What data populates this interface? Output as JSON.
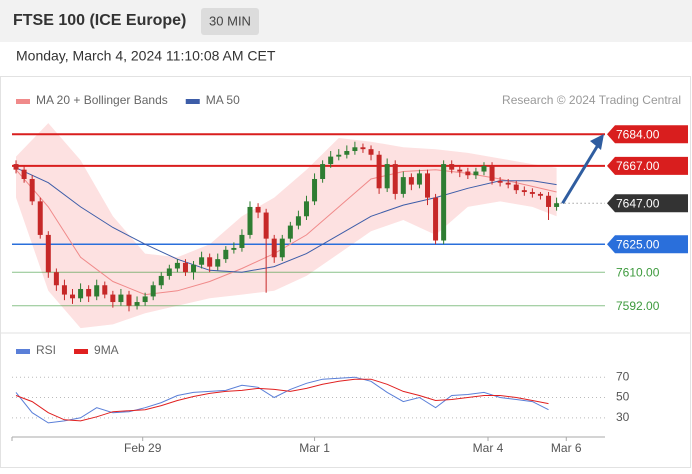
{
  "header": {
    "title": "FTSE 100 (ICE Europe)",
    "interval": "30 MIN",
    "datetime": "Monday, March 4, 2024 11:10:08 AM CET"
  },
  "chart_data": [
    {
      "type": "candlestick",
      "annotation": "Research © 2024 Trading Central",
      "up_color": "#2e7d32",
      "down_color": "#c62828",
      "xlim": [
        -0.5,
        73
      ],
      "ylim": [
        7579,
        7697
      ],
      "open": [
        7668,
        7665,
        7660,
        7648,
        7630,
        7610,
        7603,
        7598,
        7596,
        7601,
        7597,
        7603,
        7598,
        7594,
        7598,
        7592,
        7594,
        7597,
        7603,
        7608,
        7612,
        7615,
        7610,
        7614,
        7618,
        7613,
        7617,
        7622,
        7623,
        7630,
        7645,
        7642,
        7628,
        7618,
        7628,
        7635,
        7640,
        7648,
        7660,
        7668,
        7672,
        7673,
        7675,
        7677,
        7676,
        7673,
        7655,
        7668,
        7652,
        7661,
        7657,
        7663,
        7650,
        7627,
        7668,
        7665,
        7664,
        7662,
        7664,
        7667,
        7659,
        7658,
        7657,
        7654,
        7653,
        7652,
        7651,
        7645
      ],
      "high": [
        7670,
        7667,
        7662,
        7650,
        7632,
        7612,
        7606,
        7601,
        7604,
        7603,
        7606,
        7605,
        7600,
        7601,
        7600,
        7597,
        7599,
        7605,
        7610,
        7614,
        7617,
        7617,
        7616,
        7621,
        7620,
        7620,
        7624,
        7626,
        7633,
        7648,
        7647,
        7644,
        7630,
        7630,
        7637,
        7643,
        7651,
        7663,
        7670,
        7675,
        7676,
        7678,
        7680,
        7679,
        7678,
        7675,
        7671,
        7670,
        7664,
        7663,
        7665,
        7665,
        7652,
        7670,
        7670,
        7667,
        7666,
        7666,
        7669,
        7669,
        7661,
        7660,
        7659,
        7656,
        7655,
        7653,
        7653,
        7650
      ],
      "low": [
        7663,
        7658,
        7646,
        7628,
        7607,
        7600,
        7595,
        7593,
        7594,
        7594,
        7595,
        7596,
        7591,
        7592,
        7589,
        7590,
        7592,
        7595,
        7601,
        7606,
        7610,
        7608,
        7606,
        7612,
        7610,
        7611,
        7615,
        7620,
        7621,
        7628,
        7639,
        7599,
        7615,
        7616,
        7626,
        7633,
        7638,
        7646,
        7658,
        7666,
        7670,
        7671,
        7673,
        7674,
        7670,
        7652,
        7653,
        7649,
        7650,
        7654,
        7655,
        7646,
        7625,
        7625,
        7663,
        7661,
        7660,
        7660,
        7662,
        7657,
        7656,
        7655,
        7652,
        7651,
        7650,
        7649,
        7638,
        7643
      ],
      "close": [
        7665,
        7660,
        7648,
        7630,
        7610,
        7603,
        7598,
        7596,
        7601,
        7597,
        7603,
        7598,
        7594,
        7598,
        7592,
        7594,
        7597,
        7603,
        7608,
        7612,
        7615,
        7610,
        7614,
        7618,
        7613,
        7617,
        7622,
        7623,
        7630,
        7645,
        7642,
        7628,
        7618,
        7628,
        7635,
        7640,
        7648,
        7660,
        7668,
        7672,
        7673,
        7675,
        7677,
        7676,
        7673,
        7655,
        7668,
        7652,
        7661,
        7657,
        7663,
        7650,
        7627,
        7668,
        7665,
        7664,
        7662,
        7664,
        7667,
        7659,
        7658,
        7657,
        7654,
        7653,
        7652,
        7651,
        7645,
        7647
      ],
      "series": [
        {
          "name": "MA 20 + Bollinger Bands",
          "color": "#f08a8a",
          "band_color": "#fde1e1",
          "x": [
            0,
            4,
            8,
            12,
            16,
            20,
            24,
            28,
            32,
            36,
            40,
            44,
            48,
            52,
            56,
            60,
            64,
            67
          ],
          "values": [
            7665,
            7645,
            7618,
            7605,
            7598,
            7600,
            7605,
            7612,
            7620,
            7630,
            7645,
            7660,
            7664,
            7665,
            7663,
            7660,
            7656,
            7653
          ],
          "upper": [
            7672,
            7690,
            7670,
            7640,
            7620,
            7618,
            7625,
            7640,
            7650,
            7665,
            7682,
            7680,
            7677,
            7676,
            7674,
            7671,
            7668,
            7666
          ],
          "lower": [
            7650,
            7600,
            7580,
            7582,
            7588,
            7592,
            7596,
            7598,
            7600,
            7608,
            7620,
            7632,
            7638,
            7630,
            7645,
            7648,
            7645,
            7640
          ]
        },
        {
          "name": "MA 50",
          "color": "#3d5da8",
          "x": [
            0,
            4,
            8,
            12,
            16,
            20,
            24,
            28,
            32,
            36,
            40,
            44,
            48,
            52,
            56,
            60,
            64,
            67
          ],
          "values": [
            7666,
            7658,
            7645,
            7634,
            7625,
            7617,
            7611,
            7610,
            7613,
            7620,
            7630,
            7640,
            7646,
            7650,
            7655,
            7659,
            7659,
            7657
          ]
        }
      ],
      "levels": [
        {
          "value": 7684,
          "label": "7684.00",
          "color": "#d91e1e",
          "style": "box",
          "line": "solid"
        },
        {
          "value": 7667,
          "label": "7667.00",
          "color": "#d91e1e",
          "style": "box",
          "line": "solid"
        },
        {
          "value": 7647,
          "label": "7647.00",
          "color": "#333333",
          "style": "box",
          "line": "dotted"
        },
        {
          "value": 7625,
          "label": "7625.00",
          "color": "#2a6fdb",
          "style": "box",
          "line": "solid"
        },
        {
          "value": 7610,
          "label": "7610.00",
          "color": "#3d9a3d",
          "style": "text",
          "line": "thin"
        },
        {
          "value": 7592,
          "label": "7592.00",
          "color": "#3d9a3d",
          "style": "text",
          "line": "thin"
        }
      ]
    },
    {
      "type": "line",
      "xlim": [
        -0.5,
        73
      ],
      "ylim": [
        18,
        82
      ],
      "yticks": [
        30,
        50,
        70
      ],
      "grid": true,
      "x": [
        0,
        2,
        4,
        6,
        8,
        10,
        12,
        14,
        16,
        18,
        20,
        22,
        24,
        26,
        28,
        30,
        32,
        34,
        36,
        38,
        40,
        42,
        44,
        46,
        48,
        50,
        52,
        54,
        56,
        58,
        60,
        62,
        64,
        66
      ],
      "xticks": [
        {
          "value": 15.7,
          "label": "Feb 29"
        },
        {
          "value": 37,
          "label": "Mar 1"
        },
        {
          "value": 58.5,
          "label": "Mar 4"
        },
        {
          "value": 68.2,
          "label": "Mar 6"
        }
      ],
      "series": [
        {
          "name": "RSI",
          "color": "#5a7fd8",
          "values": [
            55,
            35,
            25,
            27,
            30,
            40,
            35,
            36,
            40,
            45,
            52,
            55,
            56,
            57,
            62,
            60,
            50,
            58,
            64,
            68,
            69,
            70,
            66,
            55,
            46,
            50,
            40,
            52,
            53,
            55,
            50,
            48,
            46,
            38
          ]
        },
        {
          "name": "9MA",
          "color": "#e02020",
          "values": [
            52,
            46,
            35,
            28,
            27,
            31,
            36,
            37,
            38,
            42,
            47,
            51,
            54,
            56,
            57,
            59,
            58,
            56,
            59,
            63,
            66,
            68,
            68,
            63,
            56,
            52,
            47,
            48,
            50,
            52,
            52,
            50,
            47,
            44
          ]
        }
      ]
    }
  ]
}
